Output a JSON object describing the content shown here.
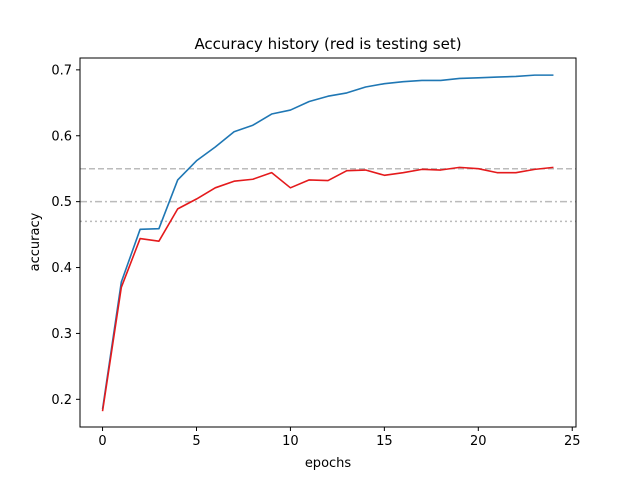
{
  "chart_data": {
    "type": "line",
    "title": "Accuracy history (red is testing set)",
    "xlabel": "epochs",
    "ylabel": "accuracy",
    "xlim": [
      -1.2,
      25.2
    ],
    "ylim": [
      0.158,
      0.718
    ],
    "xticks": [
      0,
      5,
      10,
      15,
      20,
      25
    ],
    "yticks": [
      0.2,
      0.3,
      0.4,
      0.5,
      0.6,
      0.7
    ],
    "xtick_labels": [
      "0",
      "5",
      "10",
      "15",
      "20",
      "25"
    ],
    "ytick_labels": [
      "0.2",
      "0.3",
      "0.4",
      "0.5",
      "0.6",
      "0.7"
    ],
    "grid": false,
    "x": [
      0,
      1,
      2,
      3,
      4,
      5,
      6,
      7,
      8,
      9,
      10,
      11,
      12,
      13,
      14,
      15,
      16,
      17,
      18,
      19,
      20,
      21,
      22,
      23,
      24
    ],
    "series": [
      {
        "color": "#1f77b4",
        "values": [
          0.185,
          0.378,
          0.458,
          0.459,
          0.533,
          0.562,
          0.583,
          0.606,
          0.616,
          0.633,
          0.639,
          0.652,
          0.66,
          0.665,
          0.674,
          0.679,
          0.682,
          0.684,
          0.684,
          0.687,
          0.688,
          0.689,
          0.69,
          0.692,
          0.692
        ]
      },
      {
        "color": "#e41a1c",
        "values": [
          0.182,
          0.37,
          0.444,
          0.44,
          0.489,
          0.504,
          0.521,
          0.531,
          0.534,
          0.544,
          0.521,
          0.533,
          0.532,
          0.547,
          0.548,
          0.54,
          0.544,
          0.549,
          0.548,
          0.552,
          0.55,
          0.544,
          0.544,
          0.549,
          0.552
        ]
      }
    ],
    "reference_lines": [
      {
        "y": 0.55,
        "style": "dashed",
        "color": "#bbbbbb"
      },
      {
        "y": 0.5,
        "style": "dashdot",
        "color": "#bbbbbb"
      },
      {
        "y": 0.47,
        "style": "dotted",
        "color": "#bbbbbb"
      }
    ]
  }
}
